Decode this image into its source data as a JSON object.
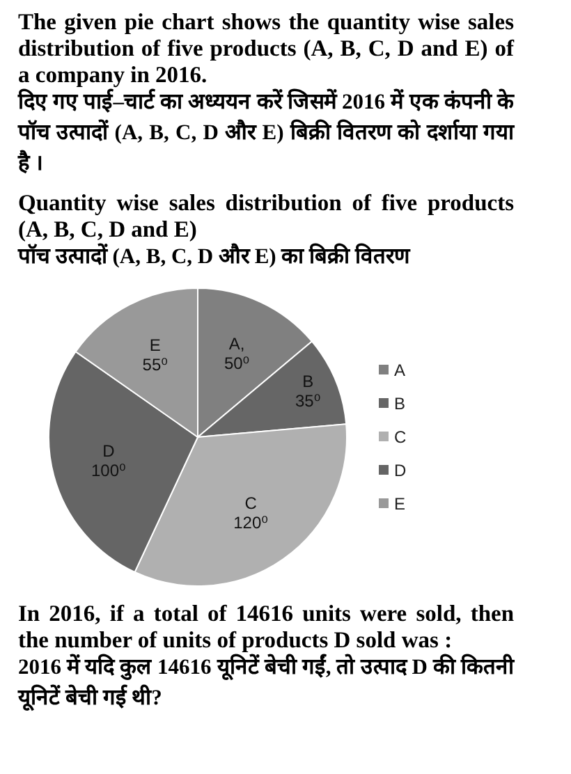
{
  "chart_data": {
    "type": "pie",
    "title": "Quantity wise sales distribution of five products (A, B, C, D and E)",
    "subtitle": "पॉच उत्पादों (A, B, C, D और E) का बिक्री वितरण",
    "annotations": [
      "The given pie chart shows the quantity wise sales distribution of five products (A, B, C, D and E) of a company in 2016.",
      "दिए गए पाई–चार्ट का अध्ययन करें जिसमें 2016 में एक कंपनी के पॉच उत्पादों (A, B, C, D और E) बिक्री वितरण को दर्शाया गया है ।",
      "In 2016, if a total of 14616 units were sold, then the number of units of products D sold was :",
      "2016 में यदि कुल 14616 यूनिटें बेची गईं, तो उत्पाद D की कितनी यूनिटें बेची गई थी?"
    ],
    "categories": [
      "A",
      "B",
      "C",
      "D",
      "E"
    ],
    "values": [
      50,
      35,
      120,
      100,
      55
    ],
    "colors": [
      "#808080",
      "#666666",
      "#b0b0b0",
      "#656565",
      "#999999"
    ],
    "value_labels": [
      "A,\n50⁰",
      "B\n35⁰",
      "C\n120⁰",
      "D\n100⁰",
      "E\n55⁰"
    ],
    "legend": "right"
  }
}
